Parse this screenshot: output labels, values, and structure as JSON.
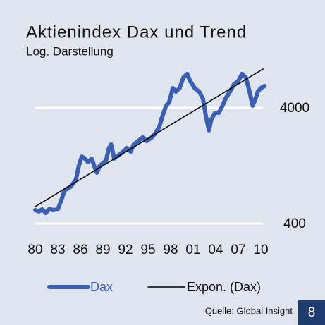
{
  "chart_data": {
    "type": "line",
    "title": "Aktienindex Dax und Trend",
    "subtitle": "Log. Darstellung",
    "source": "Quelle: Global Insight",
    "page_number": "8",
    "log_scale": true,
    "grid": true,
    "ylim": [
      380,
      10000
    ],
    "yticks": [
      400,
      4000
    ],
    "xlim": [
      1980,
      2010
    ],
    "xticks": [
      {
        "value": 1980,
        "label": "80"
      },
      {
        "value": 1983,
        "label": "83"
      },
      {
        "value": 1986,
        "label": "86"
      },
      {
        "value": 1989,
        "label": "89"
      },
      {
        "value": 1992,
        "label": "92"
      },
      {
        "value": 1995,
        "label": "95"
      },
      {
        "value": 1998,
        "label": "98"
      },
      {
        "value": 2001,
        "label": "01"
      },
      {
        "value": 2004,
        "label": "04"
      },
      {
        "value": 2007,
        "label": "07"
      },
      {
        "value": 2010,
        "label": "10"
      }
    ],
    "series": [
      {
        "name": "Dax",
        "color": "#3d5fb0",
        "x": [
          1980.0,
          1980.5,
          1980.9,
          1981.4,
          1981.9,
          1982.3,
          1983.0,
          1983.6,
          1983.9,
          1984.7,
          1985.4,
          1985.8,
          1986.2,
          1986.6,
          1987.0,
          1987.5,
          1988.0,
          1988.2,
          1988.6,
          1989.4,
          1989.8,
          1990.1,
          1990.5,
          1991.1,
          1991.7,
          1992.2,
          1992.7,
          1993.1,
          1993.7,
          1994.3,
          1994.8,
          1995.5,
          1995.9,
          1996.5,
          1996.9,
          1997.4,
          1997.8,
          1998.3,
          1998.7,
          1999.2,
          1999.7,
          2000.2,
          2000.6,
          2001.2,
          2001.8,
          2002.3,
          2002.7,
          2003.1,
          2003.4,
          2003.9,
          2004.4,
          2004.9,
          2005.3,
          2005.9,
          2006.4,
          2007.0,
          2007.5,
          2008.0,
          2008.5,
          2008.9,
          2009.3,
          2009.6,
          2010.0,
          2010.5
        ],
        "values": [
          522,
          508,
          530,
          493,
          537,
          522,
          530,
          673,
          774,
          830,
          955,
          1265,
          1518,
          1456,
          1357,
          1456,
          1180,
          1100,
          1265,
          1396,
          1796,
          1928,
          1456,
          1561,
          1675,
          1796,
          1675,
          1928,
          2067,
          2219,
          2067,
          2219,
          2379,
          2738,
          3380,
          4170,
          4476,
          5927,
          5521,
          5927,
          7312,
          7851,
          6823,
          5927,
          5521,
          4800,
          3380,
          2552,
          3149,
          3625,
          3625,
          4170,
          4800,
          5521,
          6357,
          6823,
          7851,
          7312,
          5521,
          4170,
          4800,
          5521,
          5927,
          6181
        ]
      },
      {
        "name": "Expon. (Dax)",
        "color": "#000000",
        "x": [
          1980.0,
          2010.3
        ],
        "values": [
          560,
          8660
        ]
      }
    ]
  }
}
